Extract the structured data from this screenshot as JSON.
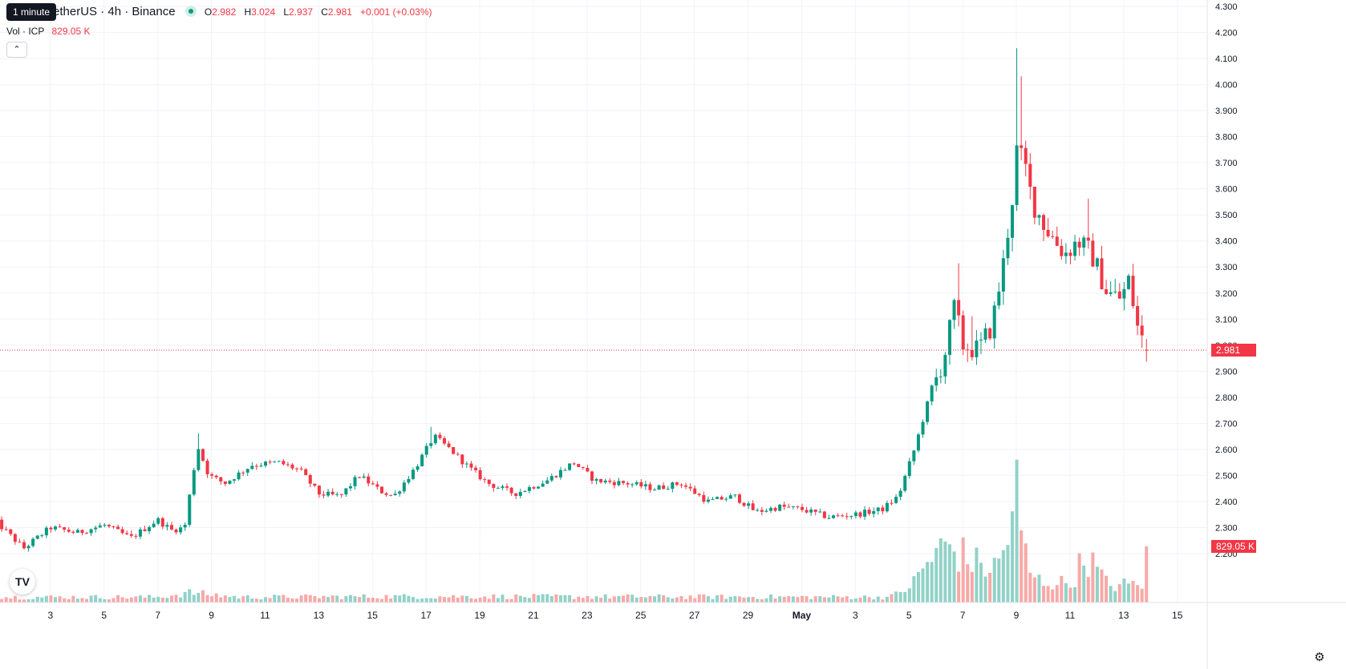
{
  "header": {
    "tooltip": "1 minute",
    "symbol": "etherUS · 4h · Binance",
    "ohlc": {
      "o_label": "O",
      "o": "2.982",
      "h_label": "H",
      "h": "3.024",
      "l_label": "L",
      "l": "2.937",
      "c_label": "C",
      "c": "2.981"
    },
    "change": "+0.001 (+0.03%)",
    "vol_label": "Vol · ICP",
    "vol_value": "829.05 K",
    "logo": "TradingView",
    "settings_icon": "gear-icon",
    "collapse_icon": "chevron-up-icon"
  },
  "badges": {
    "last_price": "2.981",
    "last_volume": "829.05 K"
  },
  "colors": {
    "up": "#089981",
    "down": "#f23645",
    "vol_up": "#92d2c8",
    "vol_down": "#f7a9a7",
    "grid": "#f0f3fa"
  },
  "chart_data": {
    "type": "candlestick",
    "interval": "4h",
    "y_ticks": [
      "4.300",
      "4.200",
      "4.100",
      "4.000",
      "3.900",
      "3.800",
      "3.700",
      "3.600",
      "3.500",
      "3.400",
      "3.300",
      "3.200",
      "3.100",
      "3.000",
      "2.900",
      "2.800",
      "2.700",
      "2.600",
      "2.500",
      "2.400",
      "2.300",
      "2.200"
    ],
    "ylim": [
      2.07,
      4.3
    ],
    "x_ticks": [
      "3",
      "5",
      "7",
      "9",
      "11",
      "13",
      "15",
      "17",
      "19",
      "21",
      "23",
      "25",
      "27",
      "29",
      "May",
      "3",
      "5",
      "7",
      "9",
      "11",
      "13",
      "15"
    ],
    "x_tick_days": [
      3,
      5,
      7,
      9,
      11,
      13,
      15,
      17,
      19,
      21,
      23,
      25,
      27,
      29,
      31,
      33,
      35,
      37,
      39,
      41,
      43,
      45
    ],
    "x_tick_bold": [
      false,
      false,
      false,
      false,
      false,
      false,
      false,
      false,
      false,
      false,
      false,
      false,
      false,
      false,
      true,
      false,
      false,
      false,
      false,
      false,
      false,
      false
    ],
    "x_range_days": [
      1.15,
      44.75
    ],
    "last_candle_day": 43.9,
    "candle_days": 4,
    "close_anchors": [
      [
        1.0,
        2.32
      ],
      [
        2.0,
        2.22
      ],
      [
        3.0,
        2.3
      ],
      [
        4.0,
        2.28
      ],
      [
        5.0,
        2.31
      ],
      [
        6.0,
        2.26
      ],
      [
        7.0,
        2.33
      ],
      [
        7.5,
        2.29
      ],
      [
        8.0,
        2.3
      ],
      [
        8.3,
        2.5
      ],
      [
        8.5,
        2.61
      ],
      [
        8.9,
        2.5
      ],
      [
        9.5,
        2.47
      ],
      [
        10.5,
        2.54
      ],
      [
        11.5,
        2.55
      ],
      [
        12.3,
        2.52
      ],
      [
        13.0,
        2.43
      ],
      [
        13.8,
        2.42
      ],
      [
        14.5,
        2.5
      ],
      [
        15.3,
        2.44
      ],
      [
        15.8,
        2.42
      ],
      [
        16.6,
        2.53
      ],
      [
        17.3,
        2.65
      ],
      [
        17.9,
        2.6
      ],
      [
        18.6,
        2.53
      ],
      [
        19.3,
        2.47
      ],
      [
        20.3,
        2.43
      ],
      [
        21.5,
        2.48
      ],
      [
        22.5,
        2.55
      ],
      [
        23.3,
        2.48
      ],
      [
        24.5,
        2.47
      ],
      [
        25.5,
        2.45
      ],
      [
        26.5,
        2.47
      ],
      [
        27.5,
        2.4
      ],
      [
        28.5,
        2.42
      ],
      [
        29.3,
        2.36
      ],
      [
        30.2,
        2.38
      ],
      [
        31.0,
        2.37
      ],
      [
        32.0,
        2.34
      ],
      [
        33.0,
        2.35
      ],
      [
        34.0,
        2.37
      ],
      [
        34.6,
        2.42
      ],
      [
        35.2,
        2.6
      ],
      [
        35.7,
        2.78
      ],
      [
        36.3,
        2.95
      ],
      [
        36.7,
        3.15
      ],
      [
        37.0,
        3.0
      ],
      [
        37.6,
        2.98
      ],
      [
        38.1,
        3.08
      ],
      [
        38.5,
        3.3
      ],
      [
        38.9,
        3.6
      ],
      [
        39.0,
        3.75
      ],
      [
        39.3,
        3.7
      ],
      [
        39.6,
        3.55
      ],
      [
        40.1,
        3.45
      ],
      [
        40.8,
        3.35
      ],
      [
        41.3,
        3.4
      ],
      [
        41.8,
        3.35
      ],
      [
        42.4,
        3.2
      ],
      [
        42.9,
        3.18
      ],
      [
        43.2,
        3.25
      ],
      [
        43.55,
        3.05
      ],
      [
        43.9,
        2.981
      ]
    ],
    "spikes": [
      [
        38.95,
        0.33
      ],
      [
        39.15,
        0.22
      ],
      [
        41.6,
        0.12
      ],
      [
        36.8,
        0.1
      ],
      [
        37.3,
        0.08
      ],
      [
        17.1,
        0.06
      ],
      [
        8.5,
        0.05
      ]
    ],
    "volume_ylim": [
      0,
      1800
    ],
    "volume_anchors": [
      [
        1,
        80
      ],
      [
        7,
        80
      ],
      [
        8.3,
        150
      ],
      [
        8.6,
        130
      ],
      [
        10,
        80
      ],
      [
        16,
        90
      ],
      [
        17,
        90
      ],
      [
        34.3,
        80
      ],
      [
        34.7,
        160
      ],
      [
        35.2,
        300
      ],
      [
        35.7,
        600
      ],
      [
        36.4,
        850
      ],
      [
        36.8,
        750
      ],
      [
        37.4,
        600
      ],
      [
        38.1,
        480
      ],
      [
        38.5,
        700
      ],
      [
        38.8,
        1200
      ],
      [
        39.0,
        1700
      ],
      [
        39.2,
        900
      ],
      [
        39.6,
        350
      ],
      [
        40.2,
        300
      ],
      [
        41.0,
        280
      ],
      [
        41.6,
        700
      ],
      [
        42.4,
        260
      ],
      [
        43.2,
        260
      ],
      [
        43.9,
        300
      ]
    ],
    "last_volume": 829.05,
    "last_close": 2.981,
    "last_open": 2.982,
    "last_high": 3.024,
    "last_low": 2.937
  }
}
